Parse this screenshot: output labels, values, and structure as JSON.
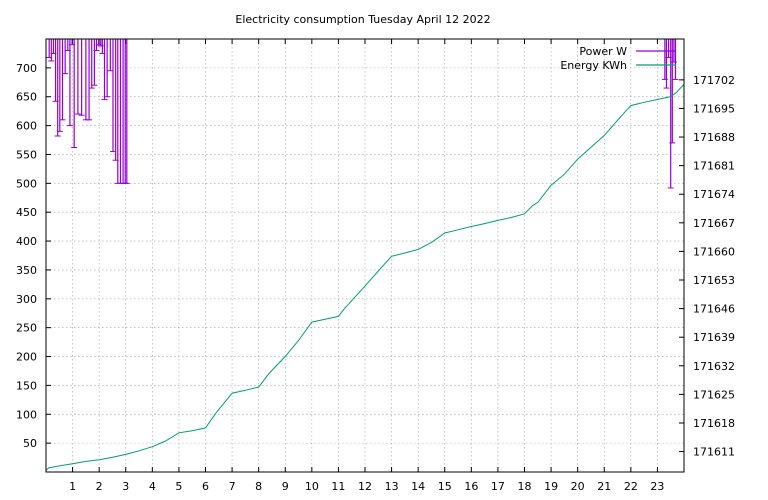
{
  "chart_data": {
    "type": "line",
    "title": "Electricity consumption Tuesday April 12 2022",
    "xlabel": "",
    "ylabel": "",
    "y2label": "",
    "xlim": [
      0,
      24
    ],
    "ylim": [
      0,
      750
    ],
    "y2lim": [
      171606,
      171712
    ],
    "xticks": [
      1,
      2,
      3,
      4,
      5,
      6,
      7,
      8,
      9,
      10,
      11,
      12,
      13,
      14,
      15,
      16,
      17,
      18,
      19,
      20,
      21,
      22,
      23
    ],
    "yticks": [
      50,
      100,
      150,
      200,
      250,
      300,
      350,
      400,
      450,
      500,
      550,
      600,
      650,
      700
    ],
    "y2ticks": [
      171611,
      171618,
      171625,
      171632,
      171639,
      171646,
      171653,
      171660,
      171667,
      171674,
      171681,
      171688,
      171695,
      171702
    ],
    "grid": true,
    "legend_position": "top-right",
    "colors": {
      "power": "#9400d3",
      "energy": "#009e73"
    },
    "series": [
      {
        "name": "Power W",
        "axis": "left",
        "style": "impulses",
        "x": [
          0.12,
          0.2,
          0.28,
          0.36,
          0.44,
          0.52,
          0.62,
          0.72,
          0.82,
          0.9,
          0.98,
          1.06,
          1.2,
          1.34,
          1.5,
          1.62,
          1.72,
          1.82,
          1.9,
          1.98,
          2.06,
          2.12,
          2.2,
          2.3,
          2.42,
          2.52,
          2.62,
          2.7,
          2.8,
          2.9,
          2.98,
          3.04,
          23.28,
          23.34,
          23.42,
          23.5,
          23.56,
          23.62,
          23.68
        ],
        "y": [
          718,
          712,
          725,
          642,
          582,
          590,
          610,
          690,
          730,
          600,
          740,
          562,
          620,
          618,
          610,
          610,
          665,
          670,
          730,
          740,
          738,
          725,
          645,
          650,
          695,
          555,
          540,
          500,
          500,
          500,
          500,
          500,
          680,
          665,
          718,
          492,
          570,
          710,
          680
        ]
      },
      {
        "name": "Energy KWh",
        "axis": "right",
        "style": "line",
        "x": [
          0,
          0.1,
          0.5,
          1,
          1.5,
          2,
          2.5,
          3,
          3.5,
          4,
          4.5,
          5,
          5.5,
          6,
          6.4,
          7,
          7.5,
          8,
          8.4,
          9,
          9.5,
          10,
          10.5,
          11,
          11.2,
          12,
          12.5,
          13,
          13.5,
          14,
          14.5,
          15,
          15.5,
          16,
          16.5,
          17,
          17.5,
          18,
          18.3,
          18.5,
          19,
          19.5,
          20,
          20.5,
          21,
          21.5,
          22,
          22.5,
          23,
          23.5,
          23.7,
          24
        ],
        "y": [
          171606.4,
          171607,
          171607.5,
          171608,
          171608.6,
          171609,
          171609.6,
          171610.3,
          171611.2,
          171612.2,
          171613.6,
          171615.6,
          171616.1,
          171616.8,
          171620.5,
          171625.3,
          171626,
          171626.8,
          171630.2,
          171634.3,
          171638.2,
          171642.7,
          171643.4,
          171644.1,
          171645.8,
          171651.5,
          171655.2,
          171658.8,
          171659.6,
          171660.5,
          171662.2,
          171664.5,
          171665.3,
          171666.1,
          171666.8,
          171667.6,
          171668.3,
          171669.2,
          171671.2,
          171672,
          171676.2,
          171678.9,
          171682.6,
          171685.5,
          171688.4,
          171692.1,
          171695.7,
          171696.5,
          171697.2,
          171697.9,
          171698.8,
          171700.9
        ]
      }
    ]
  }
}
